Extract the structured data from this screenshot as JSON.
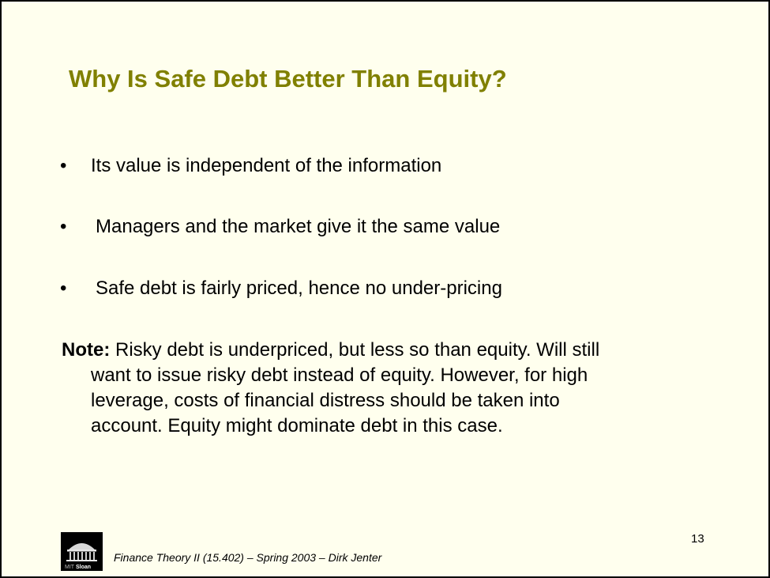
{
  "slide": {
    "title": "Why Is Safe Debt Better Than Equity?",
    "bullet_symbol": "•",
    "bullets": [
      "Its value is independent of the information",
      "Managers and the market give it the same value",
      "Safe debt is fairly priced, hence no under-pricing"
    ],
    "note": {
      "label": "Note:",
      "lines": [
        " Risky debt is underpriced, but less so than equity. Will still",
        "want to issue risky debt instead of equity. However, for high",
        "leverage, costs of financial distress should be taken into",
        "account. Equity might dominate debt in this case."
      ]
    },
    "page_number": "13",
    "footer": "Finance Theory II (15.402) – Spring 2003 – Dirk Jenter",
    "logo": {
      "text_mit": "MIT",
      "text_sloan": "Sloan"
    }
  },
  "colors": {
    "background": "#ffffee",
    "title": "#808000",
    "text": "#000000"
  }
}
